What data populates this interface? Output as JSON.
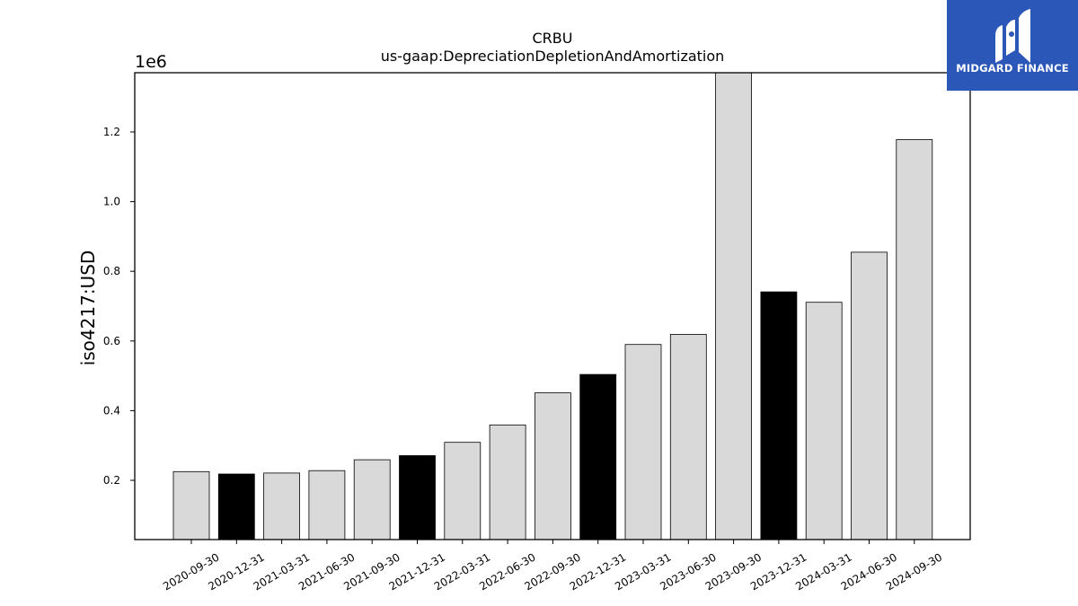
{
  "logo": {
    "text": "MIDGARD FINANCE",
    "background": "#2b57b8"
  },
  "chart_data": {
    "type": "bar",
    "title": "CRBU",
    "subtitle": "us-gaap:DepreciationDepletionAndAmortization",
    "ylabel": "iso4217:USD",
    "xlabel": "",
    "y_offset_label": "1e6",
    "ylim": [
      30000,
      1370000
    ],
    "yticks": [
      0.2,
      0.4,
      0.6,
      0.8,
      1.0,
      1.2
    ],
    "ytick_labels": [
      "0.2",
      "0.4",
      "0.6",
      "0.8",
      "1.0",
      "1.2"
    ],
    "grid": false,
    "categories": [
      "2020-09-30",
      "2020-12-31",
      "2021-03-31",
      "2021-06-30",
      "2021-09-30",
      "2021-12-31",
      "2022-03-31",
      "2022-06-30",
      "2022-09-30",
      "2022-12-31",
      "2023-03-31",
      "2023-06-30",
      "2023-09-30",
      "2023-12-31",
      "2024-03-31",
      "2024-06-30",
      "2024-09-30"
    ],
    "values": [
      225000,
      218000,
      221000,
      228000,
      259000,
      271000,
      309000,
      359000,
      451000,
      504000,
      590000,
      619000,
      1380000,
      741000,
      711000,
      855000,
      1178000
    ],
    "highlight": [
      false,
      true,
      false,
      false,
      false,
      true,
      false,
      false,
      false,
      true,
      false,
      false,
      false,
      true,
      false,
      false,
      false
    ],
    "colors": {
      "bar": "#d9d9d9",
      "highlight": "#000000",
      "edge": "#000000"
    }
  }
}
